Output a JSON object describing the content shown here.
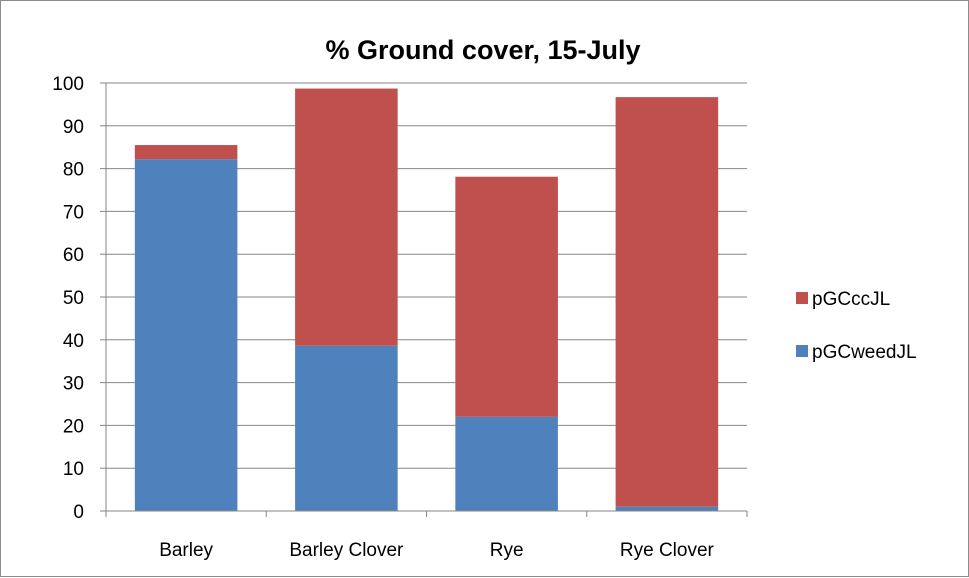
{
  "chart_data": {
    "type": "bar",
    "stacked": true,
    "title": "% Ground cover, 15-July",
    "xlabel": "",
    "ylabel": "",
    "categories": [
      "Barley",
      "Barley Clover",
      "Rye",
      "Rye Clover"
    ],
    "series": [
      {
        "name": "pGCweedJL",
        "values": [
          82.2,
          38.6,
          22.0,
          1.0
        ],
        "color": "#4F81BD"
      },
      {
        "name": "pGCccJL",
        "values": [
          3.3,
          60.1,
          56.1,
          95.7
        ],
        "color": "#C0504D"
      }
    ],
    "ylim": [
      0,
      100
    ],
    "yticks": [
      "0",
      "10",
      "20",
      "30",
      "40",
      "50",
      "60",
      "70",
      "80",
      "90",
      "100"
    ],
    "grid": true,
    "legend_position": "right",
    "legend_order": [
      "pGCccJL",
      "pGCweedJL"
    ]
  }
}
